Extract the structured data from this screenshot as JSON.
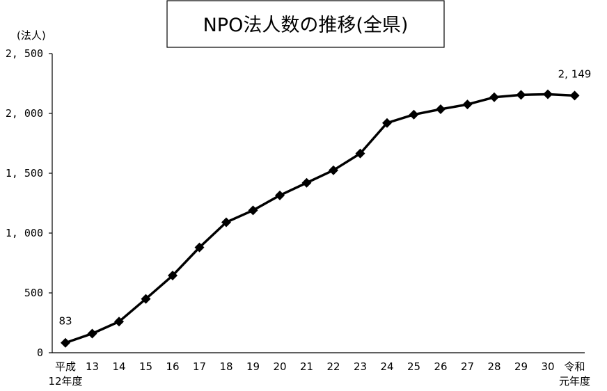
{
  "chart_data": {
    "type": "line",
    "title": "NPO法人数の推移(全県)",
    "unit_label": "(法人)",
    "categories": [
      [
        "平成",
        "12年度"
      ],
      [
        "13"
      ],
      [
        "14"
      ],
      [
        "15"
      ],
      [
        "16"
      ],
      [
        "17"
      ],
      [
        "18"
      ],
      [
        "19"
      ],
      [
        "20"
      ],
      [
        "21"
      ],
      [
        "22"
      ],
      [
        "23"
      ],
      [
        "24"
      ],
      [
        "25"
      ],
      [
        "26"
      ],
      [
        "27"
      ],
      [
        "28"
      ],
      [
        "29"
      ],
      [
        "30"
      ],
      [
        "令和",
        "元年度"
      ]
    ],
    "series": [
      {
        "values": [
          83,
          160,
          260,
          450,
          645,
          880,
          1090,
          1190,
          1315,
          1420,
          1525,
          1665,
          1920,
          1990,
          2035,
          2075,
          2135,
          2155,
          2160,
          2149
        ],
        "color": "#000000",
        "marker": "diamond"
      }
    ],
    "data_labels": [
      {
        "index": 0,
        "text": "83"
      },
      {
        "index": 19,
        "text": "2, 149"
      }
    ],
    "ylim": [
      0,
      2500
    ],
    "yticks": [
      0,
      500,
      1000,
      1500,
      2000,
      2500
    ],
    "ytick_labels": [
      "0",
      "500",
      "1, 000",
      "1, 500",
      "2, 000",
      "2, 500"
    ],
    "grid": false,
    "legend": "none"
  }
}
